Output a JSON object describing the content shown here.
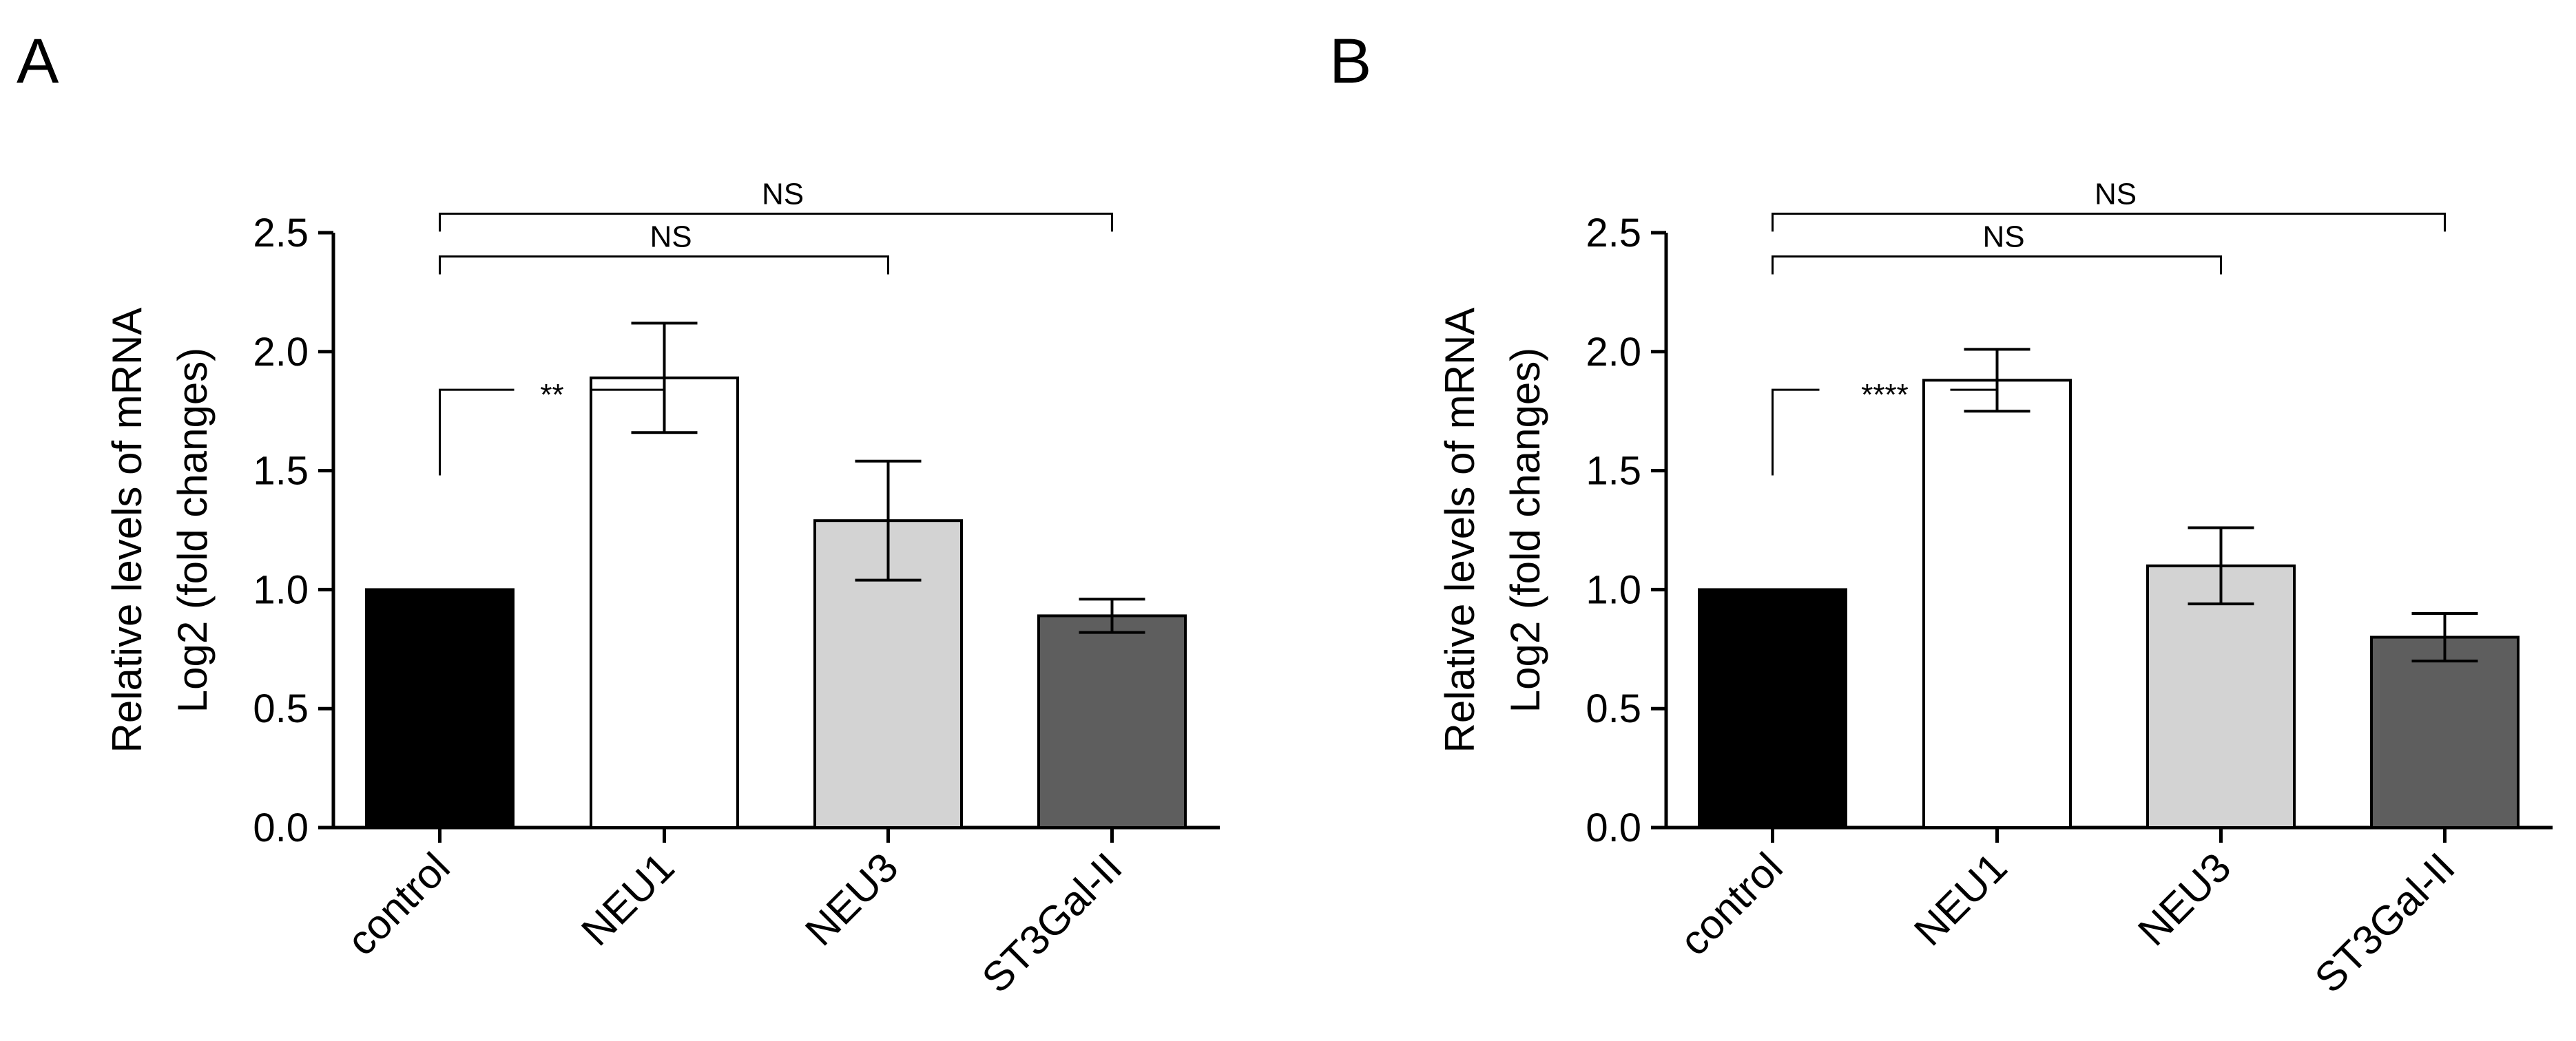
{
  "chart_data": [
    {
      "type": "bar",
      "panel_label": "A",
      "categories": [
        "control",
        "NEU1",
        "NEU3",
        "ST3Gal-II"
      ],
      "values": [
        1.0,
        1.89,
        1.29,
        0.89
      ],
      "errors": [
        0.0,
        0.23,
        0.25,
        0.07
      ],
      "bar_colors": [
        "#000000",
        "#ffffff",
        "#d3d3d3",
        "#5e5e5e"
      ],
      "ylabel": "Relative levels of mRNA\nLog2 (fold changes)",
      "ylabel_lines": [
        "Relative levels of mRNA",
        "Log2 (fold changes)"
      ],
      "xlabel": "",
      "ylim": [
        0,
        2.5
      ],
      "yticks": [
        "0.0",
        "0.5",
        "1.0",
        "1.5",
        "2.0",
        "2.5"
      ],
      "significance": [
        {
          "from": "control",
          "to": "NEU1",
          "label": "**",
          "y": 1.84
        },
        {
          "from": "control",
          "to": "NEU3",
          "label": "NS",
          "y": 2.4
        },
        {
          "from": "control",
          "to": "ST3Gal-II",
          "label": "NS",
          "y": 2.58
        }
      ]
    },
    {
      "type": "bar",
      "panel_label": "B",
      "categories": [
        "control",
        "NEU1",
        "NEU3",
        "ST3Gal-II"
      ],
      "values": [
        1.0,
        1.88,
        1.1,
        0.8
      ],
      "errors": [
        0.0,
        0.13,
        0.16,
        0.1
      ],
      "bar_colors": [
        "#000000",
        "#ffffff",
        "#d3d3d3",
        "#5e5e5e"
      ],
      "ylabel": "Relative levels of mRNA\nLog2 (fold changes)",
      "ylabel_lines": [
        "Relative levels of mRNA",
        "Log2 (fold changes)"
      ],
      "xlabel": "",
      "ylim": [
        0,
        2.5
      ],
      "yticks": [
        "0.0",
        "0.5",
        "1.0",
        "1.5",
        "2.0",
        "2.5"
      ],
      "significance": [
        {
          "from": "control",
          "to": "NEU1",
          "label": "****",
          "y": 1.84
        },
        {
          "from": "control",
          "to": "NEU3",
          "label": "NS",
          "y": 2.4
        },
        {
          "from": "control",
          "to": "ST3Gal-II",
          "label": "NS",
          "y": 2.58
        }
      ]
    }
  ]
}
